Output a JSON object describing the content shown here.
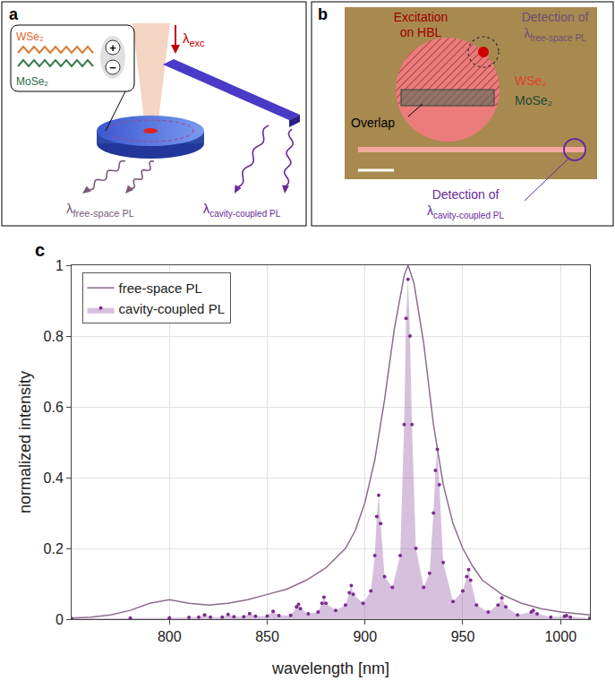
{
  "chart_data": {
    "type": "line",
    "panel": "c",
    "x_label": "wavelength [nm]",
    "y_label": "normalized intensity",
    "xlim": [
      750,
      1015
    ],
    "ylim": [
      0,
      1
    ],
    "xticks": [
      800,
      850,
      900,
      950,
      1000
    ],
    "yticks": [
      0,
      0.2,
      0.4,
      0.6,
      0.8,
      1
    ],
    "grid": true,
    "legend": "upper left",
    "series": [
      {
        "name": "free-space PL",
        "color": "#8c6d8c",
        "type": "line",
        "line_style": "solid",
        "x": [
          750,
          760,
          770,
          780,
          790,
          800,
          810,
          820,
          830,
          840,
          850,
          860,
          870,
          880,
          890,
          895,
          900,
          905,
          910,
          915,
          920,
          922,
          925,
          930,
          935,
          940,
          945,
          950,
          955,
          960,
          970,
          980,
          990,
          1000,
          1015
        ],
        "values": [
          0.003,
          0.006,
          0.012,
          0.025,
          0.045,
          0.055,
          0.045,
          0.04,
          0.045,
          0.055,
          0.07,
          0.085,
          0.11,
          0.145,
          0.2,
          0.25,
          0.33,
          0.45,
          0.62,
          0.82,
          0.97,
          1.0,
          0.95,
          0.78,
          0.55,
          0.38,
          0.27,
          0.2,
          0.15,
          0.11,
          0.07,
          0.045,
          0.03,
          0.02,
          0.012
        ]
      },
      {
        "name": "cavity-coupled PL",
        "color": "#7b2d8e",
        "type": "scatter",
        "marker": "dot",
        "x": [
          750,
          780,
          800,
          810,
          815,
          818,
          821,
          827,
          830,
          833,
          838,
          841,
          844,
          850,
          853,
          856,
          862,
          865,
          866,
          867,
          871,
          876,
          878,
          879,
          880,
          885,
          890,
          892,
          893,
          894,
          899,
          903,
          905,
          906,
          907,
          908,
          910,
          914,
          918,
          920,
          921,
          922,
          923,
          924,
          926,
          930,
          933,
          935,
          936,
          937,
          938,
          940,
          945,
          950,
          952,
          953,
          954,
          957,
          963,
          968,
          970,
          972,
          978,
          985,
          986,
          988,
          995,
          1002,
          1003,
          1005,
          1015
        ],
        "values": [
          0.002,
          0.003,
          0.004,
          0.005,
          0.006,
          0.012,
          0.006,
          0.006,
          0.013,
          0.007,
          0.007,
          0.016,
          0.008,
          0.009,
          0.022,
          0.01,
          0.011,
          0.035,
          0.042,
          0.03,
          0.015,
          0.02,
          0.045,
          0.062,
          0.045,
          0.025,
          0.04,
          0.075,
          0.095,
          0.07,
          0.045,
          0.08,
          0.18,
          0.29,
          0.35,
          0.27,
          0.12,
          0.09,
          0.18,
          0.55,
          0.85,
          0.96,
          0.8,
          0.55,
          0.2,
          0.09,
          0.13,
          0.3,
          0.42,
          0.48,
          0.38,
          0.16,
          0.05,
          0.08,
          0.12,
          0.14,
          0.11,
          0.04,
          0.02,
          0.04,
          0.06,
          0.035,
          0.012,
          0.02,
          0.025,
          0.015,
          0.006,
          0.008,
          0.01,
          0.006,
          0.003
        ]
      }
    ]
  },
  "diagrams": {
    "a": {
      "panel": "a",
      "lambda": "λ",
      "hbl_top": "WSe₂",
      "hbl_bottom": "MoSe₂",
      "charge_plus": "+",
      "charge_minus": "−",
      "excitation": "exc",
      "free_space": "free-space PL",
      "cavity_coupled": "cavity-coupled PL"
    },
    "b": {
      "panel": "b",
      "excitation": "Excitation on HBL",
      "detection": "Detection of",
      "lambda": "λ",
      "free_space": "free-space PL",
      "cavity_coupled": "cavity-coupled PL",
      "top": "WSe₂",
      "bottom": "MoSe₂",
      "overlap": "Overlap"
    }
  }
}
